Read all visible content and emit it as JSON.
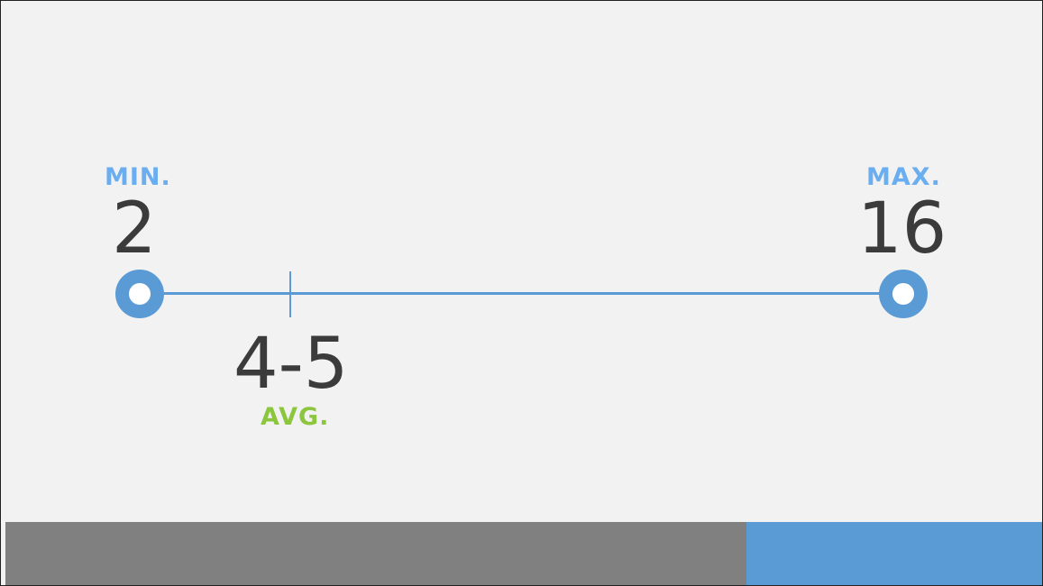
{
  "range": {
    "min_label": "MIN.",
    "min_value": "2",
    "max_label": "MAX.",
    "max_value": "16",
    "avg_value": "4-5",
    "avg_label": "AVG."
  },
  "colors": {
    "accent_blue": "#5b9bd5",
    "label_blue": "#6aaef0",
    "avg_green": "#8cc63f",
    "text_dark": "#3b3b3b",
    "background": "#f2f2f2",
    "bar_gray": "#808080",
    "bar_blue": "#5b9bd5"
  },
  "progress": {
    "fraction": 0.715
  }
}
